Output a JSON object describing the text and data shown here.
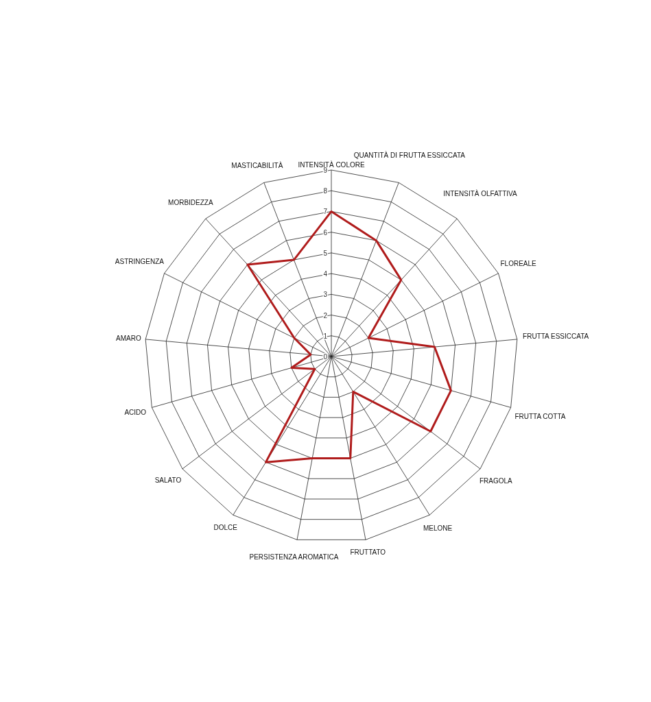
{
  "chart_data": {
    "type": "radar",
    "categories": [
      "INTENSITÀ COLORE",
      "QUANTITÀ DI FRUTTA ESSICCATA",
      "INTENSITÀ OLFATTIVA",
      "FLOREALE",
      "FRUTTA ESSICCATA",
      "FRUTTA COTTA",
      "FRAGOLA",
      "MELONE",
      "FRUTTATO",
      "PERSISTENZA AROMATICA",
      "DOLCE",
      "SALATO",
      "ACIDO",
      "AMARO",
      "ASTRINGENZA",
      "MORBIDEZZA",
      "MASTICABILITÀ"
    ],
    "series": [
      {
        "color": "#b01c1c",
        "values": [
          7,
          6,
          5,
          2,
          5,
          6,
          6,
          2,
          5,
          5,
          6,
          1,
          2,
          1,
          2,
          6,
          5
        ]
      }
    ],
    "ylim": [
      0,
      9
    ],
    "yticks": [
      0,
      1,
      2,
      3,
      4,
      5,
      6,
      7,
      8,
      9
    ],
    "grid": true,
    "marker": "none",
    "line_style": "solid"
  }
}
